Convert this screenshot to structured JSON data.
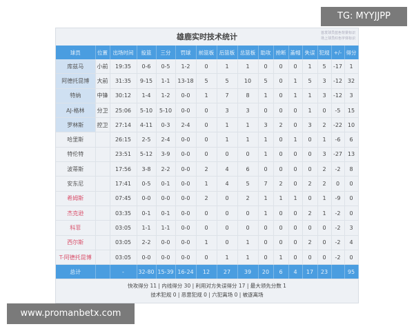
{
  "title": "雄鹿实时技术统计",
  "note": [
    "首发球员蓝色背景标识",
    "场上球员红色字体标识"
  ],
  "columns": [
    "球员",
    "位置",
    "出场时间",
    "投篮",
    "三分",
    "罚球",
    "前篮板",
    "后篮板",
    "总篮板",
    "助攻",
    "抢断",
    "盖帽",
    "失误",
    "犯规",
    "+/-",
    "得分"
  ],
  "rows": [
    {
      "starter": true,
      "oncourt": false,
      "cells": [
        "库兹马",
        "小前",
        "19:35",
        "0-6",
        "0-5",
        "1-2",
        "0",
        "1",
        "1",
        "0",
        "0",
        "0",
        "1",
        "5",
        "-17",
        "1"
      ]
    },
    {
      "starter": true,
      "oncourt": false,
      "cells": [
        "阿德托昆博",
        "大前",
        "31:35",
        "9-15",
        "1-1",
        "13-18",
        "5",
        "5",
        "10",
        "5",
        "0",
        "1",
        "5",
        "3",
        "-12",
        "32"
      ]
    },
    {
      "starter": true,
      "oncourt": false,
      "cells": [
        "特纳",
        "中锋",
        "30:12",
        "1-4",
        "1-2",
        "0-0",
        "1",
        "7",
        "8",
        "1",
        "0",
        "1",
        "1",
        "3",
        "-12",
        "3"
      ]
    },
    {
      "starter": true,
      "oncourt": false,
      "cells": [
        "AJ-格林",
        "分卫",
        "25:06",
        "5-10",
        "5-10",
        "0-0",
        "0",
        "3",
        "3",
        "0",
        "0",
        "0",
        "1",
        "0",
        "-5",
        "15"
      ]
    },
    {
      "starter": true,
      "oncourt": false,
      "cells": [
        "罗林斯",
        "控卫",
        "27:14",
        "4-11",
        "0-3",
        "2-4",
        "0",
        "1",
        "1",
        "3",
        "2",
        "0",
        "3",
        "2",
        "-22",
        "10"
      ]
    },
    {
      "starter": false,
      "oncourt": false,
      "cells": [
        "哈里斯",
        "",
        "26:15",
        "2-5",
        "2-4",
        "0-0",
        "0",
        "1",
        "1",
        "1",
        "0",
        "1",
        "0",
        "1",
        "-6",
        "6"
      ]
    },
    {
      "starter": false,
      "oncourt": false,
      "cells": [
        "特伦特",
        "",
        "23:51",
        "5-12",
        "3-9",
        "0-0",
        "0",
        "0",
        "0",
        "1",
        "0",
        "0",
        "0",
        "3",
        "-27",
        "13"
      ]
    },
    {
      "starter": false,
      "oncourt": false,
      "cells": [
        "波蒂斯",
        "",
        "17:56",
        "3-8",
        "2-2",
        "0-0",
        "2",
        "4",
        "6",
        "0",
        "0",
        "0",
        "0",
        "2",
        "-2",
        "8"
      ]
    },
    {
      "starter": false,
      "oncourt": false,
      "cells": [
        "安东尼",
        "",
        "17:41",
        "0-5",
        "0-1",
        "0-0",
        "1",
        "4",
        "5",
        "7",
        "2",
        "0",
        "2",
        "2",
        "0",
        "0"
      ]
    },
    {
      "starter": false,
      "oncourt": true,
      "cells": [
        "希姆斯",
        "",
        "07:45",
        "0-0",
        "0-0",
        "0-0",
        "2",
        "0",
        "2",
        "1",
        "1",
        "1",
        "0",
        "1",
        "-9",
        "0"
      ]
    },
    {
      "starter": false,
      "oncourt": true,
      "cells": [
        "杰克逊",
        "",
        "03:35",
        "0-1",
        "0-1",
        "0-0",
        "0",
        "0",
        "0",
        "1",
        "0",
        "0",
        "2",
        "1",
        "-2",
        "0"
      ]
    },
    {
      "starter": false,
      "oncourt": true,
      "cells": [
        "科菲",
        "",
        "03:05",
        "1-1",
        "1-1",
        "0-0",
        "0",
        "0",
        "0",
        "0",
        "0",
        "0",
        "0",
        "0",
        "-2",
        "3"
      ]
    },
    {
      "starter": false,
      "oncourt": true,
      "cells": [
        "西尔斯",
        "",
        "03:05",
        "2-2",
        "0-0",
        "0-0",
        "1",
        "0",
        "1",
        "0",
        "0",
        "0",
        "2",
        "0",
        "-2",
        "4"
      ]
    },
    {
      "starter": false,
      "oncourt": true,
      "cells": [
        "T-阿德托昆博",
        "",
        "03:05",
        "0-0",
        "0-0",
        "0-0",
        "0",
        "1",
        "1",
        "0",
        "1",
        "0",
        "0",
        "0",
        "-2",
        "0"
      ]
    }
  ],
  "total": [
    "总计",
    "",
    "-",
    "32-80",
    "15-39",
    "16-24",
    "12",
    "27",
    "39",
    "20",
    "6",
    "4",
    "17",
    "23",
    "",
    "95"
  ],
  "footer": [
    "快攻得分 11 | 内线得分 30 | 利用对方失误得分 17 | 最大领先分数 1",
    "技术犯规 0 | 恶意犯规 0 | 六犯离场 0 | 被逐离场"
  ],
  "watermarks": {
    "top": "TG: MYYJJPP",
    "bottom": "www.promanbetx.com"
  },
  "colors": {
    "header": "#4a9de0",
    "starter_bg": "#cfe0f2",
    "oncourt_text": "#d9506a"
  }
}
